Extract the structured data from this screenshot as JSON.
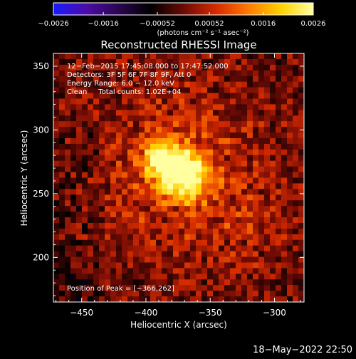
{
  "chart_data": {
    "type": "heatmap",
    "title": "Reconstructed RHESSI Image",
    "xlabel": "Heliocentric X (arcsec)",
    "ylabel": "Heliocentric Y (arcsec)",
    "xlim": [
      -472,
      -277
    ],
    "ylim": [
      165,
      360
    ],
    "x_ticks": [
      -450,
      -400,
      -350,
      -300
    ],
    "y_ticks": [
      200,
      250,
      300,
      350
    ],
    "x_tick_labels": [
      "−450",
      "−400",
      "−350",
      "−300"
    ],
    "y_tick_labels": [
      "200",
      "250",
      "300",
      "350"
    ],
    "colorbar": {
      "range": [
        -0.0026,
        0.0026
      ],
      "ticks": [
        -0.0026,
        -0.0016,
        -0.00052,
        0.00052,
        0.0016,
        0.0026
      ],
      "tick_labels": [
        "−0.0026",
        "−0.0016",
        "−0.00052",
        "0.00052",
        "0.0016",
        "0.0026"
      ],
      "unit_label": "(photons cm⁻² s⁻¹ asec⁻²)",
      "colors": [
        "#1a1aff",
        "#4b0ca8",
        "#2a0650",
        "#000000",
        "#6a0a05",
        "#d42a00",
        "#ff7a00",
        "#ffd000",
        "#ffffa0"
      ]
    },
    "sources": [
      {
        "x": -385,
        "y": 274,
        "peak": 0.0026
      },
      {
        "x": -367,
        "y": 263,
        "peak": 0.0025
      }
    ],
    "peak_position": [
      -366,
      262
    ],
    "annotations": [
      "12−Feb−2015 17:45:08.000 to 17:47:52.000",
      "Detectors: 3F 5F 6F 7F 8F 9F, Att 0",
      "Energy Range: 6.0 − 12.0 keV",
      "Clean     Total counts: 1.02E+04"
    ],
    "peak_label": "Position of Peak = [−366,262]",
    "footer_date": "18−May−2022 22:50"
  }
}
